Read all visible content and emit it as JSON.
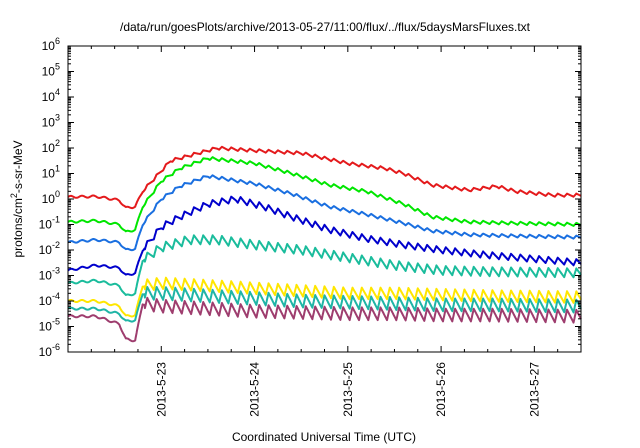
{
  "chart_data": {
    "type": "line",
    "title": "/data/run/goesPlots/archive/2013-05-27/11:00/flux/../flux/5daysMarsFluxes.txt",
    "xlabel": "Coordinated Universal Time (UTC)",
    "ylabel_main": "protons/cm",
    "ylabel_sup": "2",
    "ylabel_rest": "-s-sr-MeV",
    "x_range_days": [
      22.0,
      27.5
    ],
    "x_ticks": [
      {
        "day": 23,
        "label": "2013-5-23"
      },
      {
        "day": 24,
        "label": "2013-5-24"
      },
      {
        "day": 25,
        "label": "2013-5-25"
      },
      {
        "day": 26,
        "label": "2013-5-26"
      },
      {
        "day": 27,
        "label": "2013-5-27"
      }
    ],
    "y_scale": "log",
    "y_range_exp": [
      -6,
      6
    ],
    "y_ticks": [
      {
        "exp": 6,
        "base": "10",
        "sup": "6"
      },
      {
        "exp": 5,
        "base": "10",
        "sup": "5"
      },
      {
        "exp": 4,
        "base": "10",
        "sup": "4"
      },
      {
        "exp": 3,
        "base": "10",
        "sup": "3"
      },
      {
        "exp": 2,
        "base": "10",
        "sup": "2"
      },
      {
        "exp": 1,
        "base": "10",
        "sup": "1"
      },
      {
        "exp": 0,
        "base": "10",
        "sup": "0"
      },
      {
        "exp": -1,
        "base": "10",
        "sup": "-1"
      },
      {
        "exp": -2,
        "base": "10",
        "sup": "-2"
      },
      {
        "exp": -3,
        "base": "10",
        "sup": "-3"
      },
      {
        "exp": -4,
        "base": "10",
        "sup": "-4"
      },
      {
        "exp": -5,
        "base": "10",
        "sup": "-5"
      },
      {
        "exp": -6,
        "base": "10",
        "sup": "-6"
      }
    ],
    "grid": false,
    "series": [
      {
        "color": "#e41a1c",
        "period": 0.1,
        "amp": 0.12,
        "points": [
          [
            22.0,
            0.08
          ],
          [
            22.3,
            0.1
          ],
          [
            22.55,
            -0.05
          ],
          [
            22.62,
            -0.35
          ],
          [
            22.72,
            -0.3
          ],
          [
            22.8,
            0.3
          ],
          [
            23.1,
            1.5
          ],
          [
            23.4,
            1.8
          ],
          [
            23.6,
            2.0
          ],
          [
            24.0,
            1.9
          ],
          [
            24.5,
            1.8
          ],
          [
            25.0,
            1.4
          ],
          [
            25.4,
            1.2
          ],
          [
            25.6,
            1.0
          ],
          [
            25.9,
            0.55
          ],
          [
            26.3,
            0.35
          ],
          [
            26.6,
            0.5
          ],
          [
            26.8,
            0.3
          ],
          [
            27.2,
            0.15
          ],
          [
            27.5,
            0.15
          ]
        ]
      },
      {
        "color": "#00e600",
        "period": 0.1,
        "amp": 0.12,
        "points": [
          [
            22.0,
            -0.9
          ],
          [
            22.3,
            -0.85
          ],
          [
            22.55,
            -1.0
          ],
          [
            22.62,
            -1.3
          ],
          [
            22.72,
            -1.2
          ],
          [
            22.8,
            -0.3
          ],
          [
            23.0,
            0.7
          ],
          [
            23.2,
            1.2
          ],
          [
            23.5,
            1.6
          ],
          [
            24.0,
            1.4
          ],
          [
            24.4,
            1.0
          ],
          [
            24.8,
            0.55
          ],
          [
            25.2,
            0.3
          ],
          [
            25.6,
            -0.2
          ],
          [
            25.9,
            -0.7
          ],
          [
            26.3,
            -0.9
          ],
          [
            26.8,
            -0.95
          ],
          [
            27.5,
            -1.0
          ]
        ]
      },
      {
        "color": "#1a6fe0",
        "period": 0.1,
        "amp": 0.12,
        "points": [
          [
            22.0,
            -1.7
          ],
          [
            22.3,
            -1.6
          ],
          [
            22.55,
            -1.7
          ],
          [
            22.62,
            -2.0
          ],
          [
            22.72,
            -1.95
          ],
          [
            22.8,
            -1.0
          ],
          [
            23.0,
            0.0
          ],
          [
            23.2,
            0.5
          ],
          [
            23.5,
            0.9
          ],
          [
            24.0,
            0.6
          ],
          [
            24.4,
            0.2
          ],
          [
            24.8,
            -0.3
          ],
          [
            25.2,
            -0.6
          ],
          [
            25.6,
            -0.95
          ],
          [
            25.9,
            -1.25
          ],
          [
            26.3,
            -1.4
          ],
          [
            26.8,
            -1.45
          ],
          [
            27.5,
            -1.5
          ]
        ]
      },
      {
        "color": "#0000cc",
        "period": 0.1,
        "amp": 0.25,
        "points": [
          [
            22.0,
            -2.8
          ],
          [
            22.3,
            -2.6
          ],
          [
            22.55,
            -2.7
          ],
          [
            22.62,
            -3.0
          ],
          [
            22.72,
            -2.9
          ],
          [
            22.8,
            -2.0
          ],
          [
            23.0,
            -1.1
          ],
          [
            23.2,
            -0.7
          ],
          [
            23.5,
            -0.2
          ],
          [
            23.8,
            0.0
          ],
          [
            24.1,
            -0.3
          ],
          [
            24.4,
            -0.7
          ],
          [
            24.8,
            -1.2
          ],
          [
            25.2,
            -1.55
          ],
          [
            25.6,
            -1.8
          ],
          [
            26.0,
            -2.0
          ],
          [
            26.5,
            -2.2
          ],
          [
            27.5,
            -2.5
          ]
        ]
      },
      {
        "color": "#1abc9c",
        "period": 0.1,
        "amp": 0.35,
        "points": [
          [
            22.0,
            -3.3
          ],
          [
            22.3,
            -3.2
          ],
          [
            22.55,
            -3.4
          ],
          [
            22.62,
            -3.8
          ],
          [
            22.72,
            -3.7
          ],
          [
            22.8,
            -2.4
          ],
          [
            23.0,
            -1.9
          ],
          [
            23.3,
            -1.6
          ],
          [
            23.6,
            -1.6
          ],
          [
            24.0,
            -1.8
          ],
          [
            24.5,
            -2.0
          ],
          [
            25.0,
            -2.3
          ],
          [
            25.5,
            -2.6
          ],
          [
            26.0,
            -2.8
          ],
          [
            26.5,
            -2.85
          ],
          [
            27.5,
            -2.9
          ]
        ]
      },
      {
        "color": "#ffe600",
        "period": 0.1,
        "amp": 0.45,
        "points": [
          [
            22.0,
            -4.0
          ],
          [
            22.3,
            -4.0
          ],
          [
            22.55,
            -4.2
          ],
          [
            22.62,
            -4.6
          ],
          [
            22.72,
            -4.55
          ],
          [
            22.8,
            -3.4
          ],
          [
            23.0,
            -3.3
          ],
          [
            23.5,
            -3.4
          ],
          [
            24.0,
            -3.5
          ],
          [
            24.5,
            -3.6
          ],
          [
            25.0,
            -3.7
          ],
          [
            25.5,
            -3.7
          ],
          [
            26.0,
            -3.75
          ],
          [
            26.5,
            -3.8
          ],
          [
            27.5,
            -3.85
          ]
        ]
      },
      {
        "color": "#1fb5a6",
        "period": 0.1,
        "amp": 0.5,
        "points": [
          [
            22.0,
            -4.3
          ],
          [
            22.3,
            -4.3
          ],
          [
            22.55,
            -4.5
          ],
          [
            22.62,
            -4.8
          ],
          [
            22.72,
            -4.75
          ],
          [
            22.8,
            -3.7
          ],
          [
            23.0,
            -3.7
          ],
          [
            23.5,
            -3.8
          ],
          [
            24.0,
            -3.9
          ],
          [
            24.5,
            -4.0
          ],
          [
            25.0,
            -4.05
          ],
          [
            25.5,
            -4.1
          ],
          [
            26.0,
            -4.15
          ],
          [
            26.5,
            -4.15
          ],
          [
            27.5,
            -4.2
          ]
        ]
      },
      {
        "color": "#9e3d6e",
        "period": 0.1,
        "amp": 0.5,
        "points": [
          [
            22.0,
            -4.6
          ],
          [
            22.3,
            -4.6
          ],
          [
            22.55,
            -4.9
          ],
          [
            22.62,
            -5.5
          ],
          [
            22.72,
            -5.55
          ],
          [
            22.8,
            -4.1
          ],
          [
            23.0,
            -4.2
          ],
          [
            23.5,
            -4.3
          ],
          [
            24.0,
            -4.4
          ],
          [
            24.5,
            -4.45
          ],
          [
            25.0,
            -4.5
          ],
          [
            25.5,
            -4.5
          ],
          [
            26.0,
            -4.55
          ],
          [
            26.5,
            -4.55
          ],
          [
            27.5,
            -4.6
          ]
        ]
      }
    ]
  }
}
